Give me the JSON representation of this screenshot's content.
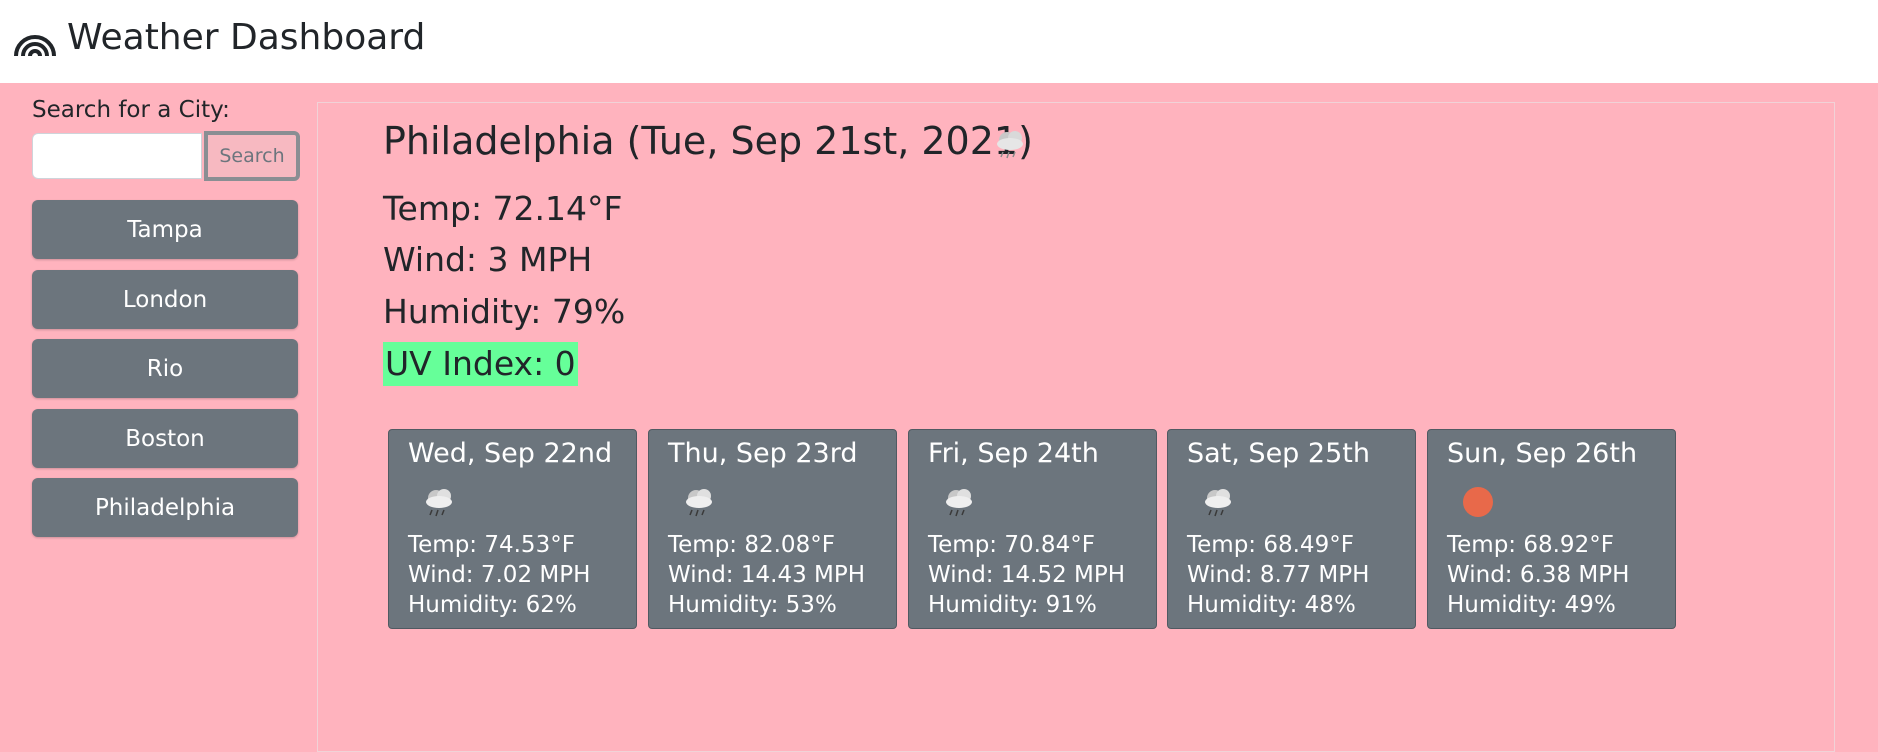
{
  "app": {
    "title": "Weather Dashboard",
    "logo_icon": "rainbow-icon"
  },
  "search": {
    "label": "Search for a City:",
    "value": "",
    "placeholder": "",
    "button_label": "Search"
  },
  "history": [
    "Tampa",
    "London",
    "Rio",
    "Boston",
    "Philadelphia"
  ],
  "current": {
    "title": "Philadelphia (Tue, Sep 21st, 2021)",
    "icon": "rain-cloud-icon",
    "temp": "Temp: 72.14°F",
    "wind": "Wind: 3 MPH",
    "humidity": "Humidity: 79%",
    "uv": "UV Index: 0",
    "uv_color": "#66ff99"
  },
  "forecast": [
    {
      "date": "Wed, Sep 22nd",
      "icon": "rain-cloud-icon",
      "temp": "Temp: 74.53°F",
      "wind": "Wind: 7.02 MPH",
      "humidity": "Humidity: 62%"
    },
    {
      "date": "Thu, Sep 23rd",
      "icon": "rain-cloud-icon",
      "temp": "Temp: 82.08°F",
      "wind": "Wind: 14.43 MPH",
      "humidity": "Humidity: 53%"
    },
    {
      "date": "Fri, Sep 24th",
      "icon": "rain-cloud-icon",
      "temp": "Temp: 70.84°F",
      "wind": "Wind: 14.52 MPH",
      "humidity": "Humidity: 91%"
    },
    {
      "date": "Sat, Sep 25th",
      "icon": "rain-cloud-icon",
      "temp": "Temp: 68.49°F",
      "wind": "Wind: 8.77 MPH",
      "humidity": "Humidity: 48%"
    },
    {
      "date": "Sun, Sep 26th",
      "icon": "sun-icon",
      "temp": "Temp: 68.92°F",
      "wind": "Wind: 6.38 MPH",
      "humidity": "Humidity: 49%"
    }
  ],
  "colors": {
    "background": "#ffb3be",
    "header": "#ffffff",
    "card": "#6c757d",
    "button": "#6c757d",
    "sun": "#e8694a"
  }
}
